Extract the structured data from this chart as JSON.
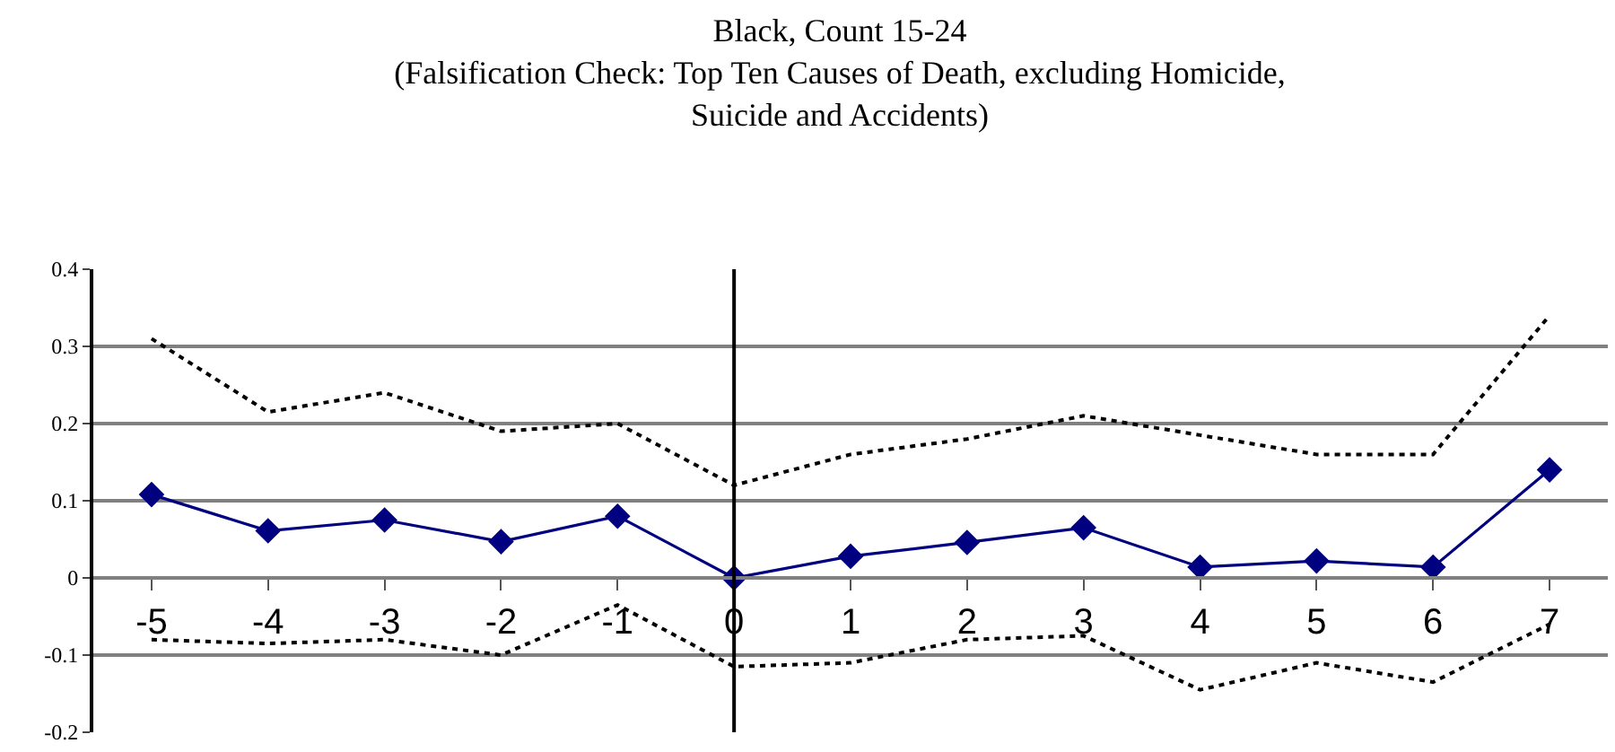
{
  "chart_data": {
    "type": "line",
    "title": "Black, Count 15-24\n(Falsification Check: Top Ten Causes of Death, excluding Homicide,\nSuicide and Accidents)",
    "x": [
      -5,
      -4,
      -3,
      -2,
      -1,
      0,
      1,
      2,
      3,
      4,
      5,
      6,
      7
    ],
    "xlim": [
      -5.5,
      7.5
    ],
    "xticks": [
      -5,
      -4,
      -3,
      -2,
      -1,
      0,
      1,
      2,
      3,
      4,
      5,
      6,
      7
    ],
    "ylim": [
      -0.2,
      0.4
    ],
    "yticks": [
      -0.2,
      -0.1,
      0,
      0.1,
      0.2,
      0.3,
      0.4
    ],
    "grid": "y",
    "ref_lines": [
      {
        "axis": "x",
        "value": 0,
        "color": "#000000"
      }
    ],
    "series": [
      {
        "color": "#000080",
        "marker": "diamond",
        "line_style": "solid",
        "values": [
          0.108,
          0.061,
          0.075,
          0.047,
          0.08,
          0.0,
          0.028,
          0.046,
          0.065,
          0.014,
          0.022,
          0.014,
          0.14
        ]
      },
      {
        "color": "#000000",
        "marker": "none",
        "line_style": "dotted",
        "values": [
          0.31,
          0.215,
          0.24,
          0.19,
          0.2,
          0.12,
          0.16,
          0.18,
          0.21,
          0.185,
          0.16,
          0.16,
          0.34
        ]
      },
      {
        "color": "#000000",
        "marker": "none",
        "line_style": "dotted",
        "values": [
          -0.08,
          -0.085,
          -0.08,
          -0.1,
          -0.035,
          -0.115,
          -0.11,
          -0.08,
          -0.075,
          -0.145,
          -0.11,
          -0.135,
          -0.06
        ]
      }
    ]
  }
}
